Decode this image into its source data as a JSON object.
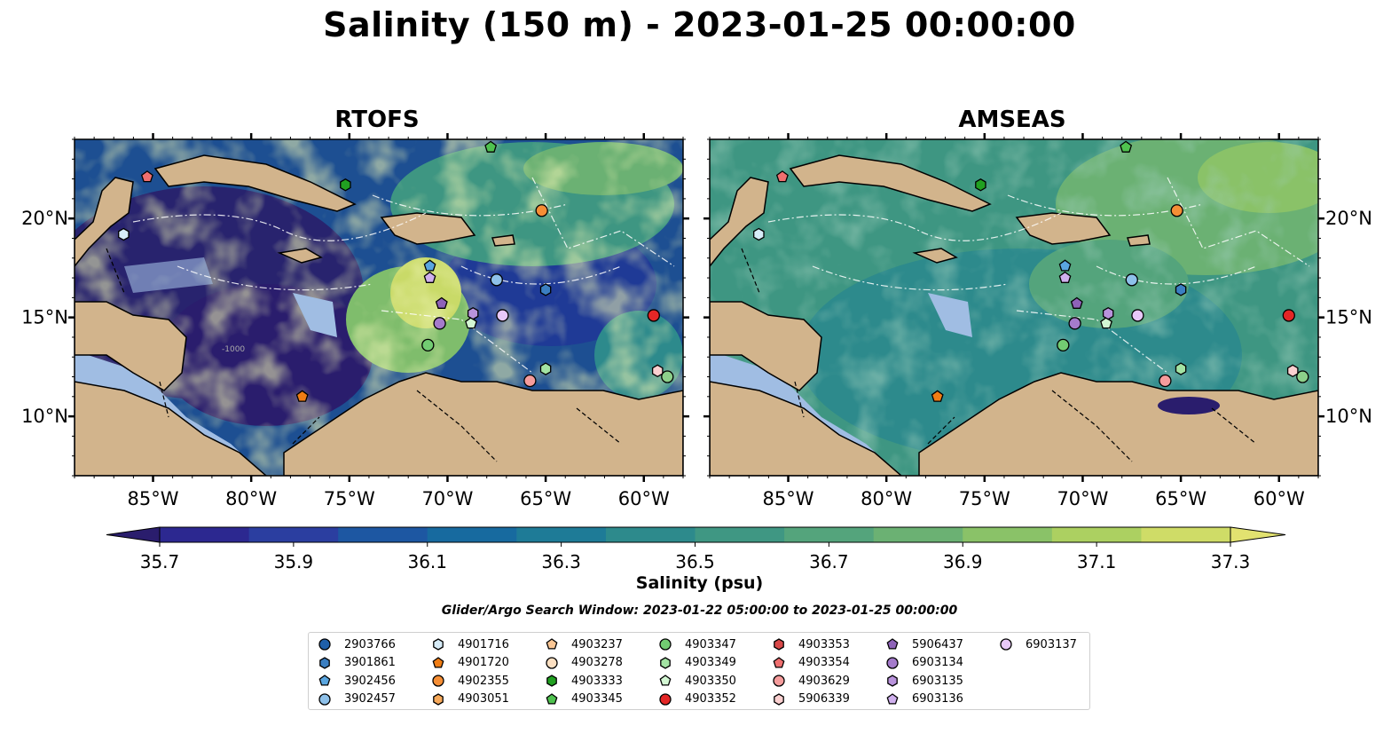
{
  "title": "Salinity (150 m) - 2023-01-25 00:00:00",
  "panels": [
    {
      "title": "RTOFS"
    },
    {
      "title": "AMSEAS"
    }
  ],
  "map": {
    "lon_range": [
      -89,
      -58
    ],
    "lat_range": [
      7,
      24
    ],
    "lon_ticks": [
      {
        "v": -85,
        "label": "85°W"
      },
      {
        "v": -80,
        "label": "80°W"
      },
      {
        "v": -75,
        "label": "75°W"
      },
      {
        "v": -70,
        "label": "70°W"
      },
      {
        "v": -65,
        "label": "65°W"
      },
      {
        "v": -60,
        "label": "60°W"
      }
    ],
    "lat_ticks": [
      {
        "v": 10,
        "label": "10°N"
      },
      {
        "v": 15,
        "label": "15°N"
      },
      {
        "v": 20,
        "label": "20°N"
      }
    ],
    "contour_label": "-1000",
    "colors": {
      "land": "#d2b48c",
      "shallow": "#a0bde3"
    }
  },
  "colorbar": {
    "label": "Salinity (psu)",
    "ticks": [
      "35.7",
      "35.9",
      "36.1",
      "36.3",
      "36.5",
      "36.7",
      "36.9",
      "37.1",
      "37.3"
    ],
    "colors": [
      "#2a1d6d",
      "#2c2890",
      "#2b3ea0",
      "#1d57a2",
      "#176a9f",
      "#1e7b97",
      "#2d8a8c",
      "#3f9783",
      "#54a47c",
      "#6bb173",
      "#8ac268",
      "#acd061",
      "#cfdc67",
      "#e2e270"
    ]
  },
  "search_window": "Glider/Argo Search Window: 2023-01-22 05:00:00 to 2023-01-25 00:00:00",
  "platforms": [
    {
      "id": "2903766",
      "marker": "circle",
      "color": "#1f5fa8",
      "lon": null,
      "lat": null
    },
    {
      "id": "3901861",
      "marker": "hexagon",
      "color": "#3b7fc2",
      "lon": -65,
      "lat": 16.4
    },
    {
      "id": "3902456",
      "marker": "pentagon",
      "color": "#5aa6e0",
      "lon": -70.9,
      "lat": 17.6
    },
    {
      "id": "3902457",
      "marker": "circle",
      "color": "#8ec1ea",
      "lon": -67.5,
      "lat": 16.9
    },
    {
      "id": "4901716",
      "marker": "hexagon",
      "color": "#d7ecf8",
      "lon": -86.5,
      "lat": 19.2
    },
    {
      "id": "4901720",
      "marker": "pentagon",
      "color": "#f07d14",
      "lon": -77.4,
      "lat": 11.0
    },
    {
      "id": "4902355",
      "marker": "circle",
      "color": "#f58e35",
      "lon": -65.2,
      "lat": 20.4
    },
    {
      "id": "4903051",
      "marker": "hexagon",
      "color": "#f7a95a",
      "lon": null,
      "lat": null
    },
    {
      "id": "4903237",
      "marker": "pentagon",
      "color": "#fbc795",
      "lon": null,
      "lat": null
    },
    {
      "id": "4903278",
      "marker": "circle",
      "color": "#fde0c2",
      "lon": null,
      "lat": null
    },
    {
      "id": "4903333",
      "marker": "hexagon",
      "color": "#21a021",
      "lon": -75.2,
      "lat": 21.7
    },
    {
      "id": "4903345",
      "marker": "pentagon",
      "color": "#4fc24f",
      "lon": -67.8,
      "lat": 23.6
    },
    {
      "id": "4903347",
      "marker": "circle",
      "color": "#72cc72",
      "lon": -71.0,
      "lat": 13.6
    },
    {
      "id": "4903349",
      "marker": "hexagon",
      "color": "#a3e3a3",
      "lon": -65.0,
      "lat": 12.4
    },
    {
      "id": "4903350",
      "marker": "pentagon",
      "color": "#d3f7d3",
      "lon": -68.8,
      "lat": 14.7
    },
    {
      "id": "4903352",
      "marker": "circle",
      "color": "#e32626",
      "lon": -59.5,
      "lat": 15.1
    },
    {
      "id": "4903353",
      "marker": "hexagon",
      "color": "#d84848",
      "lon": null,
      "lat": null
    },
    {
      "id": "4903354",
      "marker": "pentagon",
      "color": "#ef6f6f",
      "lon": -85.3,
      "lat": 22.1
    },
    {
      "id": "4903629",
      "marker": "circle",
      "color": "#f59c9c",
      "lon": -65.8,
      "lat": 11.8
    },
    {
      "id": "5906339",
      "marker": "hexagon",
      "color": "#fbd0d0",
      "lon": -59.3,
      "lat": 12.3
    },
    {
      "id": "5906437",
      "marker": "pentagon",
      "color": "#8e62b8",
      "lon": -70.3,
      "lat": 15.7
    },
    {
      "id": "6903134",
      "marker": "circle",
      "color": "#a57bcc",
      "lon": -70.4,
      "lat": 14.7
    },
    {
      "id": "6903135",
      "marker": "hexagon",
      "color": "#b993dc",
      "lon": -68.7,
      "lat": 15.2
    },
    {
      "id": "6903136",
      "marker": "pentagon",
      "color": "#d0b0ee",
      "lon": -70.9,
      "lat": 17.0
    },
    {
      "id": "6903137",
      "marker": "circle",
      "color": "#e8c8f8",
      "lon": -67.2,
      "lat": 15.1
    },
    {
      "id": "",
      "marker": "circle",
      "color": "#8dd08a",
      "lon": -58.8,
      "lat": 12.0
    }
  ]
}
